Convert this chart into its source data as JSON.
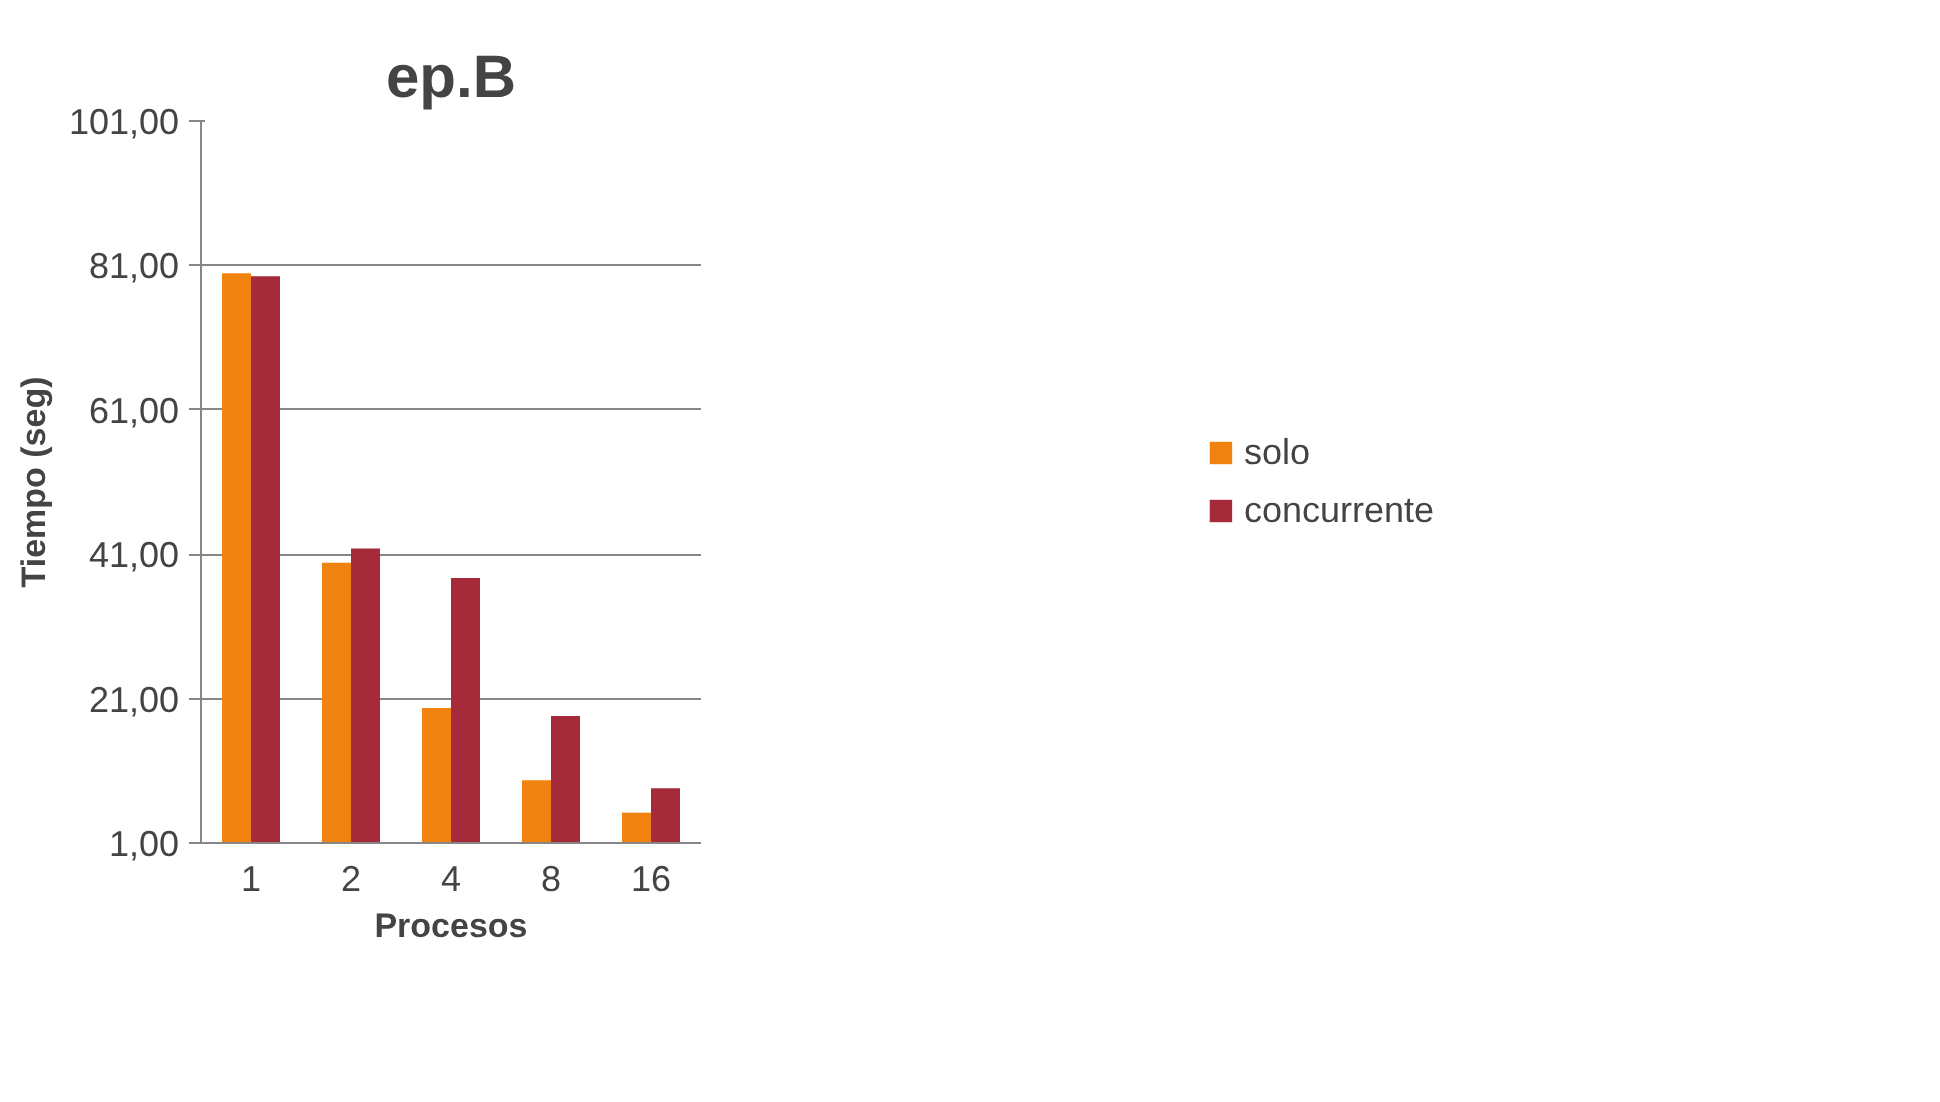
{
  "chart_data": {
    "type": "bar",
    "title": "ep.B",
    "xlabel": "Procesos",
    "ylabel": "Tiempo (seg)",
    "categories": [
      "1",
      "2",
      "4",
      "8",
      "16"
    ],
    "series": [
      {
        "name": "solo",
        "color": "#f0830f",
        "values": [
          79.9,
          39.8,
          19.7,
          9.7,
          5.2
        ]
      },
      {
        "name": "concurrente",
        "color": "#a52a3a",
        "values": [
          79.5,
          41.8,
          37.7,
          18.6,
          8.6
        ]
      }
    ],
    "ylim": [
      1,
      101
    ],
    "yticks": [
      {
        "value": 1,
        "label": "1,00"
      },
      {
        "value": 21,
        "label": "21,00"
      },
      {
        "value": 41,
        "label": "41,00"
      },
      {
        "value": 61,
        "label": "61,00"
      },
      {
        "value": 81,
        "label": "81,00"
      },
      {
        "value": 101,
        "label": "101,00"
      }
    ],
    "grid": "y",
    "legend": "right"
  }
}
